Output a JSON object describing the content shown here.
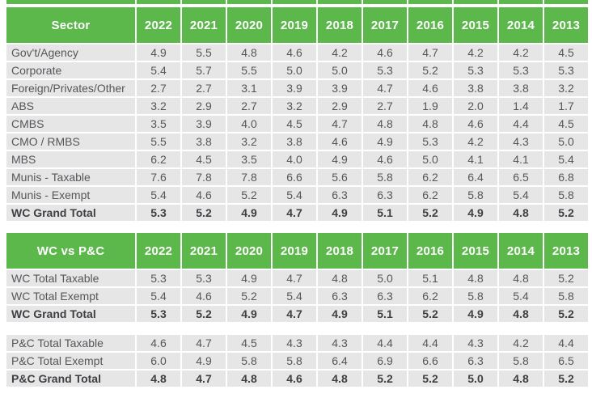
{
  "colors": {
    "header_green": "#5cb84b",
    "row_background": "#e6e6e6",
    "body_text": "#54565a",
    "bold_text": "#3d3f43",
    "header_text": "#ffffff"
  },
  "chart_data": [
    {
      "type": "table",
      "title": "Sector",
      "columns": [
        "2022",
        "2021",
        "2020",
        "2019",
        "2018",
        "2017",
        "2016",
        "2015",
        "2014",
        "2013"
      ],
      "rows": [
        {
          "label": "Gov't/Agency",
          "bold": false,
          "values": [
            "4.9",
            "5.5",
            "4.8",
            "4.6",
            "4.2",
            "4.6",
            "4.7",
            "4.2",
            "4.2",
            "4.5"
          ]
        },
        {
          "label": "Corporate",
          "bold": false,
          "values": [
            "5.4",
            "5.7",
            "5.5",
            "5.0",
            "5.0",
            "5.3",
            "5.2",
            "5.3",
            "5.3",
            "5.3"
          ]
        },
        {
          "label": "Foreign/Privates/Other",
          "bold": false,
          "values": [
            "2.7",
            "2.7",
            "3.1",
            "3.9",
            "3.9",
            "4.7",
            "4.6",
            "3.8",
            "3.8",
            "3.2"
          ]
        },
        {
          "label": "ABS",
          "bold": false,
          "values": [
            "3.2",
            "2.9",
            "2.7",
            "3.2",
            "2.9",
            "2.7",
            "1.9",
            "2.0",
            "1.4",
            "1.7"
          ]
        },
        {
          "label": "CMBS",
          "bold": false,
          "values": [
            "3.5",
            "3.9",
            "4.0",
            "4.5",
            "4.7",
            "4.8",
            "4.8",
            "4.6",
            "4.4",
            "4.5"
          ]
        },
        {
          "label": "CMO / RMBS",
          "bold": false,
          "values": [
            "5.5",
            "3.8",
            "3.2",
            "3.8",
            "4.6",
            "4.9",
            "5.3",
            "4.2",
            "4.3",
            "5.0"
          ]
        },
        {
          "label": "MBS",
          "bold": false,
          "values": [
            "6.2",
            "4.5",
            "3.5",
            "4.0",
            "4.9",
            "4.6",
            "5.0",
            "4.1",
            "4.1",
            "5.4"
          ]
        },
        {
          "label": "Munis - Taxable",
          "bold": false,
          "values": [
            "7.6",
            "7.8",
            "7.8",
            "6.6",
            "5.6",
            "5.8",
            "6.2",
            "6.4",
            "6.5",
            "6.8"
          ]
        },
        {
          "label": "Munis - Exempt",
          "bold": false,
          "values": [
            "5.4",
            "4.6",
            "5.2",
            "5.4",
            "6.3",
            "6.3",
            "6.2",
            "5.8",
            "5.4",
            "5.8"
          ]
        },
        {
          "label": "WC Grand Total",
          "bold": true,
          "values": [
            "5.3",
            "5.2",
            "4.9",
            "4.7",
            "4.9",
            "5.1",
            "5.2",
            "4.9",
            "4.8",
            "5.2"
          ]
        }
      ]
    },
    {
      "type": "table",
      "title": "WC vs P&C",
      "columns": [
        "2022",
        "2021",
        "2020",
        "2019",
        "2018",
        "2017",
        "2016",
        "2015",
        "2014",
        "2013"
      ],
      "rows": [
        {
          "label": "WC Total Taxable",
          "bold": false,
          "values": [
            "5.3",
            "5.3",
            "4.9",
            "4.7",
            "4.8",
            "5.0",
            "5.1",
            "4.8",
            "4.8",
            "5.2"
          ]
        },
        {
          "label": "WC Total Exempt",
          "bold": false,
          "values": [
            "5.4",
            "4.6",
            "5.2",
            "5.4",
            "6.3",
            "6.3",
            "6.2",
            "5.8",
            "5.4",
            "5.8"
          ]
        },
        {
          "label": "WC Grand Total",
          "bold": true,
          "values": [
            "5.3",
            "5.2",
            "4.9",
            "4.7",
            "4.9",
            "5.1",
            "5.2",
            "4.9",
            "4.8",
            "5.2"
          ]
        },
        {
          "spacer": true
        },
        {
          "label": "P&C Total Taxable",
          "bold": false,
          "values": [
            "4.6",
            "4.7",
            "4.5",
            "4.3",
            "4.3",
            "4.4",
            "4.4",
            "4.3",
            "4.2",
            "4.4"
          ]
        },
        {
          "label": "P&C Total Exempt",
          "bold": false,
          "values": [
            "6.0",
            "4.9",
            "5.8",
            "5.8",
            "6.4",
            "6.9",
            "6.6",
            "6.3",
            "5.8",
            "6.5"
          ]
        },
        {
          "label": "P&C Grand Total",
          "bold": true,
          "values": [
            "4.8",
            "4.7",
            "4.8",
            "4.6",
            "4.8",
            "5.2",
            "5.2",
            "5.0",
            "4.8",
            "5.2"
          ]
        }
      ]
    }
  ]
}
